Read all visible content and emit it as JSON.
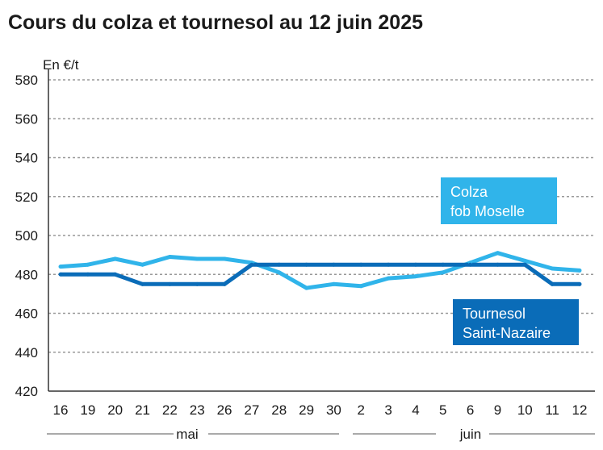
{
  "title": "Cours du colza et tournesol au 12 juin 2025",
  "colors": {
    "colza": "#30b4ea",
    "tournesol": "#0a6cb8",
    "grid": "#999999",
    "axis": "#333333"
  },
  "chart_data": {
    "type": "line",
    "title": "Cours du colza et tournesol au 12 juin 2025",
    "ylabel": "En €/t",
    "xlabel": "",
    "ylim": [
      420,
      580
    ],
    "yticks": [
      420,
      440,
      460,
      480,
      500,
      520,
      540,
      560,
      580
    ],
    "grid": true,
    "categories": [
      "16",
      "19",
      "20",
      "21",
      "22",
      "23",
      "26",
      "27",
      "28",
      "29",
      "30",
      "2",
      "3",
      "4",
      "5",
      "6",
      "9",
      "10",
      "11",
      "12"
    ],
    "months": [
      {
        "label": "mai",
        "from": 0,
        "to": 10
      },
      {
        "label": "juin",
        "from": 11,
        "to": 19
      }
    ],
    "series": [
      {
        "name": "Colza fob Moselle",
        "name_lines": [
          "Colza",
          "fob Moselle"
        ],
        "color": "#30b4ea",
        "values": [
          484,
          485,
          488,
          485,
          489,
          488,
          488,
          486,
          481,
          473,
          475,
          474,
          478,
          479,
          481,
          486,
          491,
          487,
          483,
          482
        ]
      },
      {
        "name": "Tournesol Saint-Nazaire",
        "name_lines": [
          "Tournesol",
          "Saint-Nazaire"
        ],
        "color": "#0a6cb8",
        "values": [
          480,
          480,
          480,
          475,
          475,
          475,
          475,
          485,
          485,
          485,
          485,
          485,
          485,
          485,
          485,
          485,
          485,
          485,
          475,
          475
        ]
      }
    ]
  }
}
